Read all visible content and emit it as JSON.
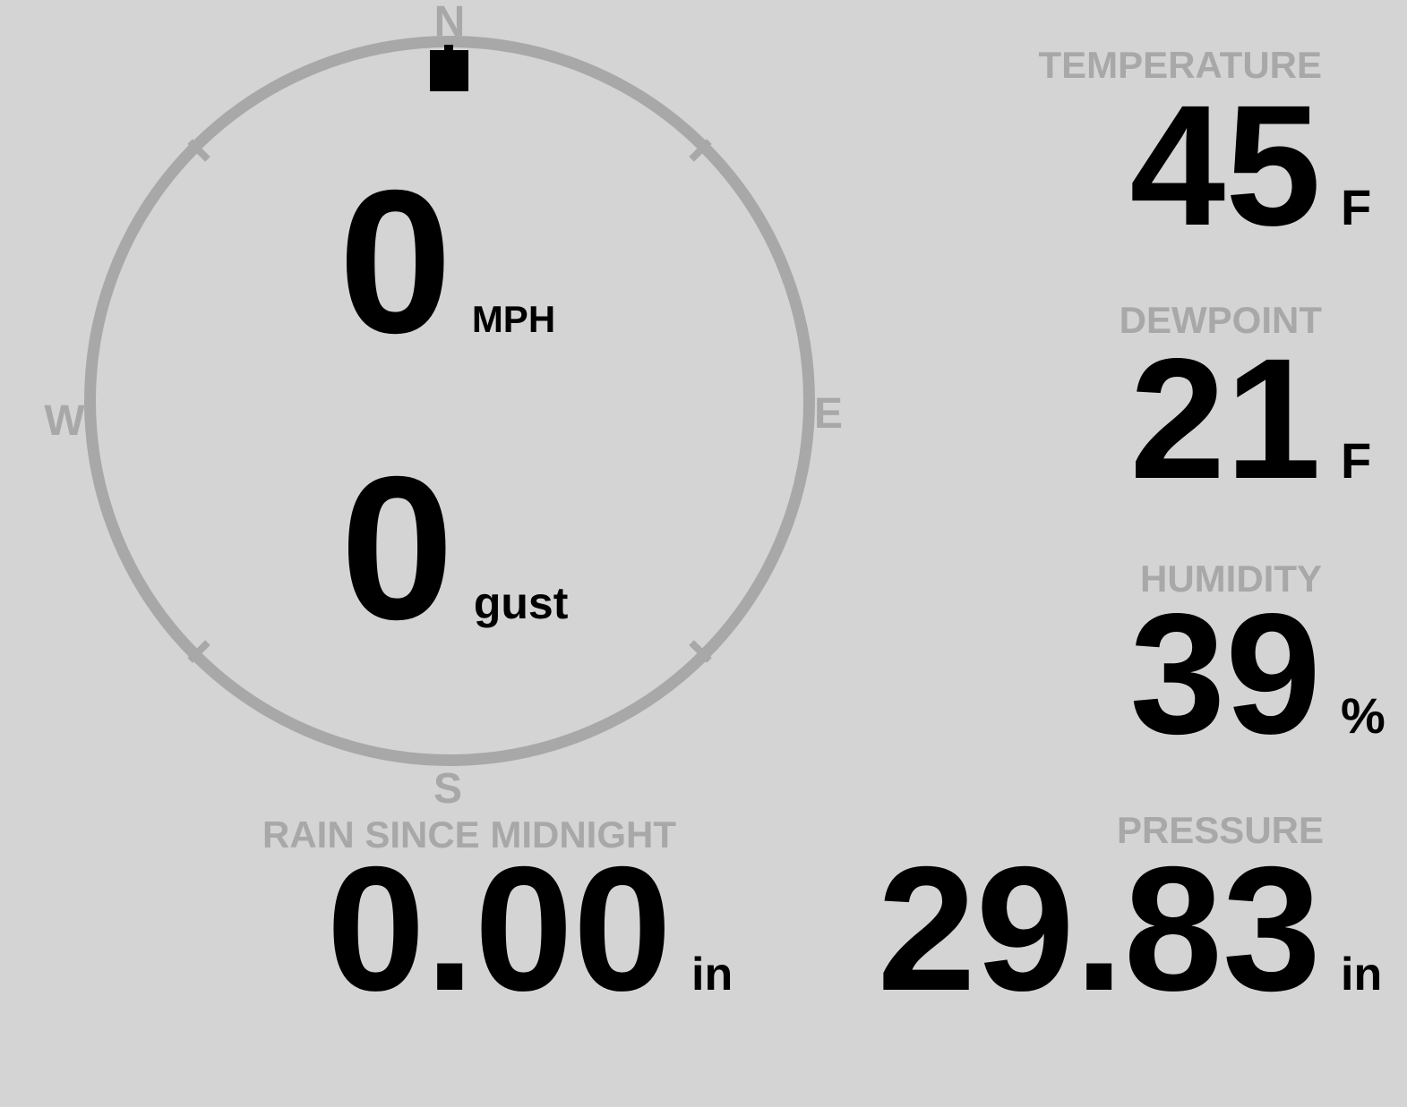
{
  "theme": {
    "background": "#d4d4d4",
    "muted_gray": "#a8a8a8",
    "text_black": "#000000"
  },
  "compass": {
    "cardinals": {
      "north": "N",
      "east": "E",
      "south": "S",
      "west": "W"
    },
    "direction_marker_position": "north",
    "wind_speed": {
      "value": "0",
      "unit": "MPH"
    },
    "wind_gust": {
      "value": "0",
      "unit": "gust"
    }
  },
  "metrics": {
    "temperature": {
      "label": "TEMPERATURE",
      "value": "45",
      "unit": "F"
    },
    "dewpoint": {
      "label": "DEWPOINT",
      "value": "21",
      "unit": "F"
    },
    "humidity": {
      "label": "HUMIDITY",
      "value": "39",
      "unit": "%"
    },
    "rain": {
      "label": "RAIN SINCE MIDNIGHT",
      "value": "0.00",
      "unit": "in"
    },
    "pressure": {
      "label": "PRESSURE",
      "value": "29.83",
      "unit": "in"
    }
  }
}
